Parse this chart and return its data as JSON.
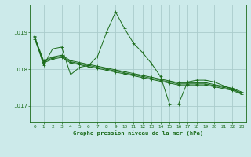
{
  "title": "Graphe pression niveau de la mer (hPa)",
  "background_color": "#cceaea",
  "grid_color": "#aacccc",
  "line_color": "#1a6b1a",
  "x_ticks": [
    0,
    1,
    2,
    3,
    4,
    5,
    6,
    7,
    8,
    9,
    10,
    11,
    12,
    13,
    14,
    15,
    16,
    17,
    18,
    19,
    20,
    21,
    22,
    23
  ],
  "y_ticks": [
    1017,
    1018,
    1019
  ],
  "ylim": [
    1016.55,
    1019.75
  ],
  "xlim": [
    -0.5,
    23.5
  ],
  "series_spiky": [
    1018.9,
    1018.1,
    1018.55,
    1018.6,
    1017.85,
    1018.05,
    1018.1,
    1018.35,
    1019.0,
    1019.55,
    1019.1,
    1018.7,
    1018.45,
    1018.15,
    1017.8,
    1017.05,
    1017.05,
    1017.65,
    1017.7,
    1017.7,
    1017.65,
    1017.55,
    1017.45,
    1017.35
  ],
  "series_smooth": [
    [
      1018.85,
      1018.2,
      1018.3,
      1018.35,
      1018.2,
      1018.15,
      1018.1,
      1018.05,
      1018.0,
      1017.95,
      1017.9,
      1017.85,
      1017.8,
      1017.75,
      1017.7,
      1017.65,
      1017.6,
      1017.6,
      1017.6,
      1017.6,
      1017.55,
      1017.5,
      1017.45,
      1017.35
    ],
    [
      1018.85,
      1018.2,
      1018.3,
      1018.35,
      1018.2,
      1018.15,
      1018.1,
      1018.05,
      1018.0,
      1017.95,
      1017.9,
      1017.85,
      1017.8,
      1017.75,
      1017.7,
      1017.65,
      1017.6,
      1017.6,
      1017.6,
      1017.6,
      1017.55,
      1017.5,
      1017.45,
      1017.35
    ],
    [
      1018.85,
      1018.2,
      1018.3,
      1018.35,
      1018.2,
      1018.15,
      1018.1,
      1018.05,
      1018.0,
      1017.95,
      1017.9,
      1017.85,
      1017.8,
      1017.75,
      1017.7,
      1017.65,
      1017.6,
      1017.6,
      1017.6,
      1017.6,
      1017.55,
      1017.5,
      1017.45,
      1017.35
    ]
  ]
}
